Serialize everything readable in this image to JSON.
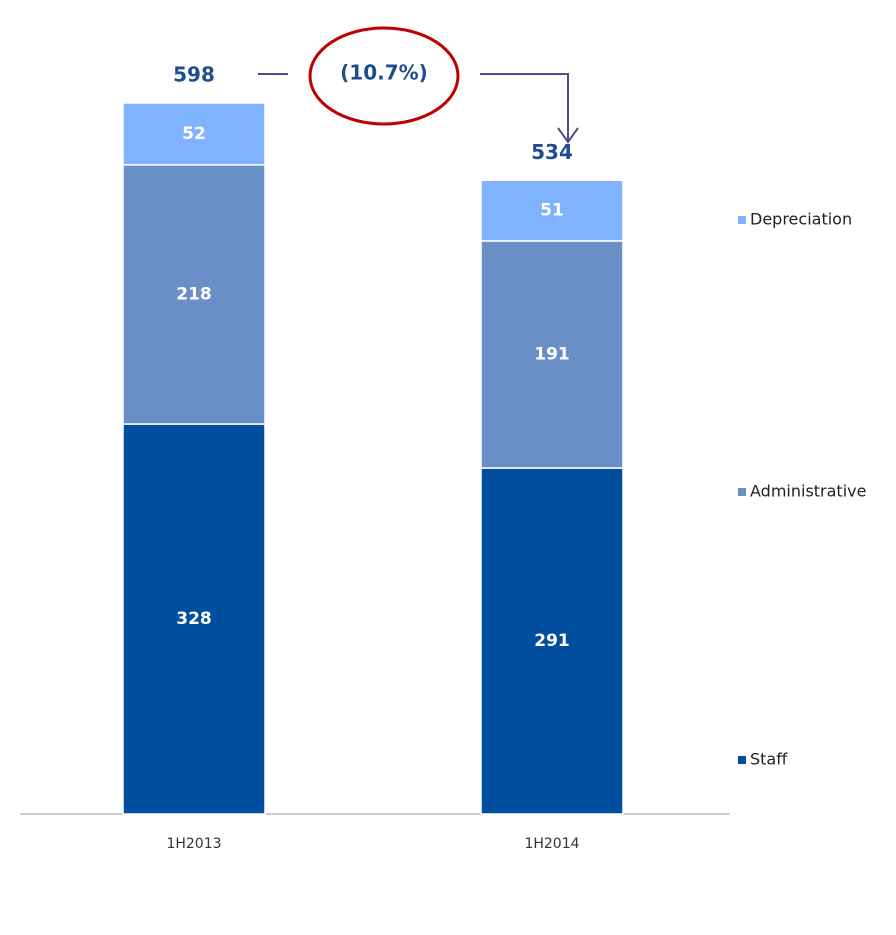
{
  "chart_data": {
    "type": "stacked_bar",
    "categories": [
      "1H2013",
      "1H2014"
    ],
    "series": [
      {
        "name": "Staff",
        "color": "#004f9f",
        "values": [
          328,
          291
        ]
      },
      {
        "name": "Administrative",
        "color": "#6a8fc6",
        "values": [
          218,
          191
        ]
      },
      {
        "name": "Depreciation",
        "color": "#7fb2ff",
        "values": [
          52,
          51
        ]
      }
    ],
    "totals": [
      598,
      534
    ],
    "annotation": "(10.7%)",
    "legend": "right"
  }
}
